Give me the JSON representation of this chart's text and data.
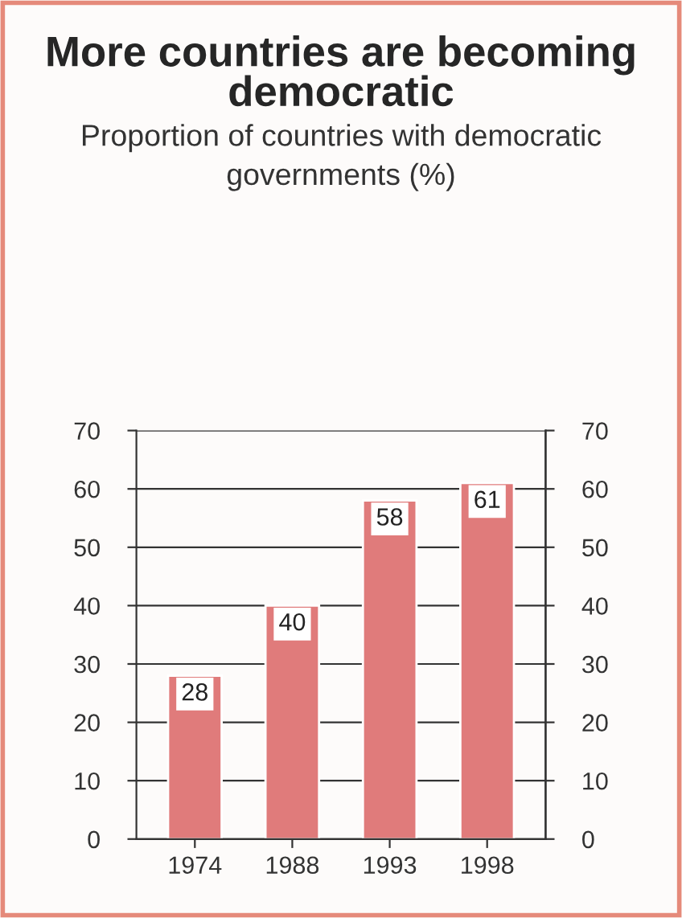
{
  "chart_data": {
    "type": "bar",
    "title": "More countries are becoming democratic",
    "subtitle": "Proportion of countries with democratic governments (%)",
    "categories": [
      "1974",
      "1988",
      "1993",
      "1998"
    ],
    "values": [
      28,
      40,
      58,
      61
    ],
    "color": "#e07b7b",
    "data_labels": true,
    "ylim": [
      0,
      70
    ],
    "yticks": [
      0,
      10,
      20,
      30,
      40,
      50,
      60,
      70
    ],
    "y2lim": [
      0,
      70
    ],
    "y2ticks": [
      0,
      10,
      20,
      30,
      40,
      50,
      60,
      70
    ],
    "grid": "y"
  }
}
